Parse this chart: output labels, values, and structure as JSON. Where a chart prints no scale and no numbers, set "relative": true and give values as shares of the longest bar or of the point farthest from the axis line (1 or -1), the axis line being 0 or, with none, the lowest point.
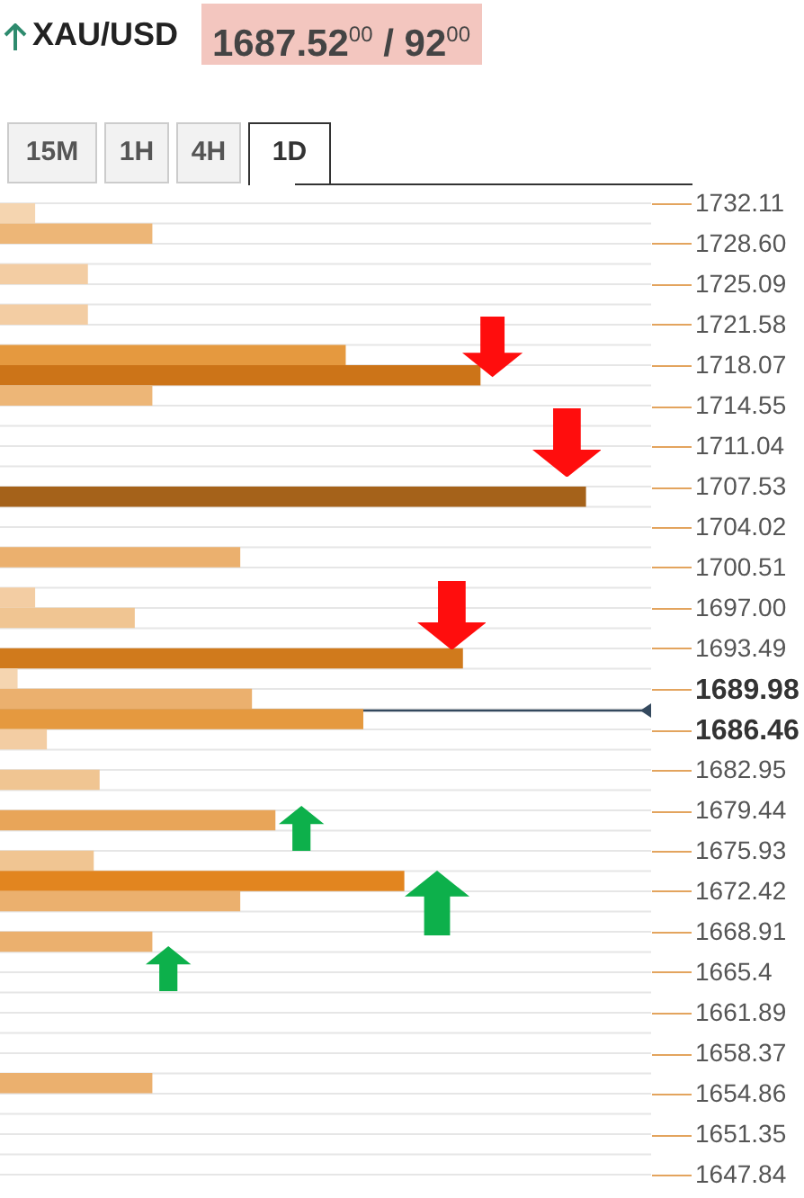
{
  "chart_data": {
    "type": "bar",
    "orientation": "horizontal",
    "relative": true,
    "title": "XAU/USD",
    "subtitle": "1687.52$^{00}$ / 92$^{00}$",
    "annotations": [
      "15M",
      "1H",
      "4H",
      "1D"
    ],
    "x": [
      1731.23,
      1729.48,
      1725.97,
      1722.46,
      1718.95,
      1717.19,
      1715.44,
      1706.66,
      1701.4,
      1697.89,
      1696.13,
      1692.62,
      1690.87,
      1689.11,
      1687.36,
      1685.61,
      1682.09,
      1678.58,
      1675.07,
      1673.32,
      1671.56,
      1668.05,
      1655.77
    ],
    "values": [
      0.06,
      0.26,
      0.15,
      0.15,
      0.59,
      0.82,
      0.26,
      1,
      0.41,
      0.06,
      0.23,
      0.79,
      0.03,
      0.43,
      0.62,
      0.08,
      0.17,
      0.47,
      0.16,
      0.69,
      0.41,
      0.26,
      0.26
    ],
    "colors": [
      "#f5d5b0",
      "#edb677",
      "#f3cda3",
      "#f3cda3",
      "#e5993f",
      "#cc7418",
      "#edb677",
      "#a5621a",
      "#ebb06e",
      "#f3cda3",
      "#f0c592",
      "#d07a1c",
      "#f5d5b0",
      "#ebb06e",
      "#e5993f",
      "#f3cda3",
      "#f0c592",
      "#e8a559",
      "#f0c592",
      "#e2851f",
      "#ebb06e",
      "#ebb06e",
      "#ebb06e"
    ],
    "ylim": [
      1647.84,
      1732.11
    ],
    "yticks": [
      1732.11,
      {
        "value": 1728.6,
        "label": "1728.60"
      },
      1725.09,
      1721.58,
      1718.07,
      1714.55,
      1711.04,
      1707.53,
      1704.02,
      1700.51,
      {
        "value": 1697,
        "label": "1697.00"
      },
      1693.49,
      1689.98,
      1686.46,
      1682.95,
      1679.44,
      1675.93,
      1672.42,
      1668.91,
      1665.4,
      1661.89,
      1658.37,
      1654.86,
      1651.35,
      1647.84
    ],
    "ref_lines": [
      {
        "axis": "y",
        "value": 1688.1,
        "color": "#34495e"
      }
    ],
    "grid": true,
    "tick_labels": "y"
  }
}
